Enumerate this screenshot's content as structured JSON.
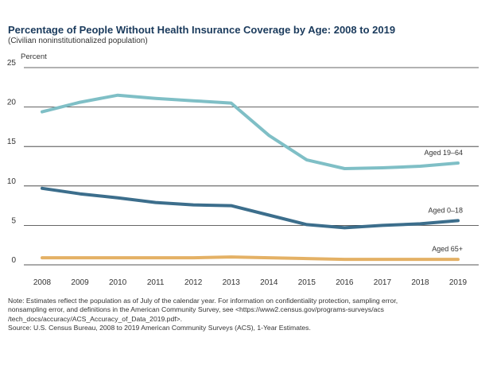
{
  "chart_data": {
    "type": "line",
    "title": "Percentage of People Without Health Insurance Coverage by Age: 2008 to 2019",
    "subtitle": "(Civilian noninstitutionalized population)",
    "ylabel": "Percent",
    "xlabel": "",
    "ylim": [
      0,
      25
    ],
    "yticks": [
      0,
      5,
      10,
      15,
      20,
      25
    ],
    "categories": [
      "2008",
      "2009",
      "2010",
      "2011",
      "2012",
      "2013",
      "2014",
      "2015",
      "2016",
      "2017",
      "2018",
      "2019"
    ],
    "grid": "horizontal",
    "series": [
      {
        "name": "Aged 19–64",
        "color": "#7fbfc6",
        "values": [
          19.4,
          20.6,
          21.5,
          21.1,
          20.8,
          20.5,
          16.4,
          13.3,
          12.2,
          12.3,
          12.5,
          12.9
        ]
      },
      {
        "name": "Aged 0–18",
        "color": "#3c6e8c",
        "values": [
          9.7,
          9.0,
          8.5,
          7.9,
          7.6,
          7.5,
          6.3,
          5.1,
          4.7,
          5.0,
          5.2,
          5.6
        ]
      },
      {
        "name": "Aged 65+",
        "color": "#e4b165",
        "values": [
          0.9,
          0.9,
          0.9,
          0.9,
          0.9,
          1.0,
          0.9,
          0.8,
          0.7,
          0.7,
          0.7,
          0.7
        ]
      }
    ]
  },
  "notes": {
    "line1": "Note: Estimates reflect the population as of July of the calendar year. For information on confidentiality protection, sampling error,",
    "line2": "nonsampling error, and definitions in the American Community Survey, see <https://www2.census.gov/programs-surveys/acs",
    "line3": "/tech_docs/accuracy/ACS_Accuracy_of_Data_2019.pdf>.",
    "source": "Source: U.S. Census Bureau, 2008 to 2019 American Community Surveys (ACS), 1-Year Estimates."
  }
}
